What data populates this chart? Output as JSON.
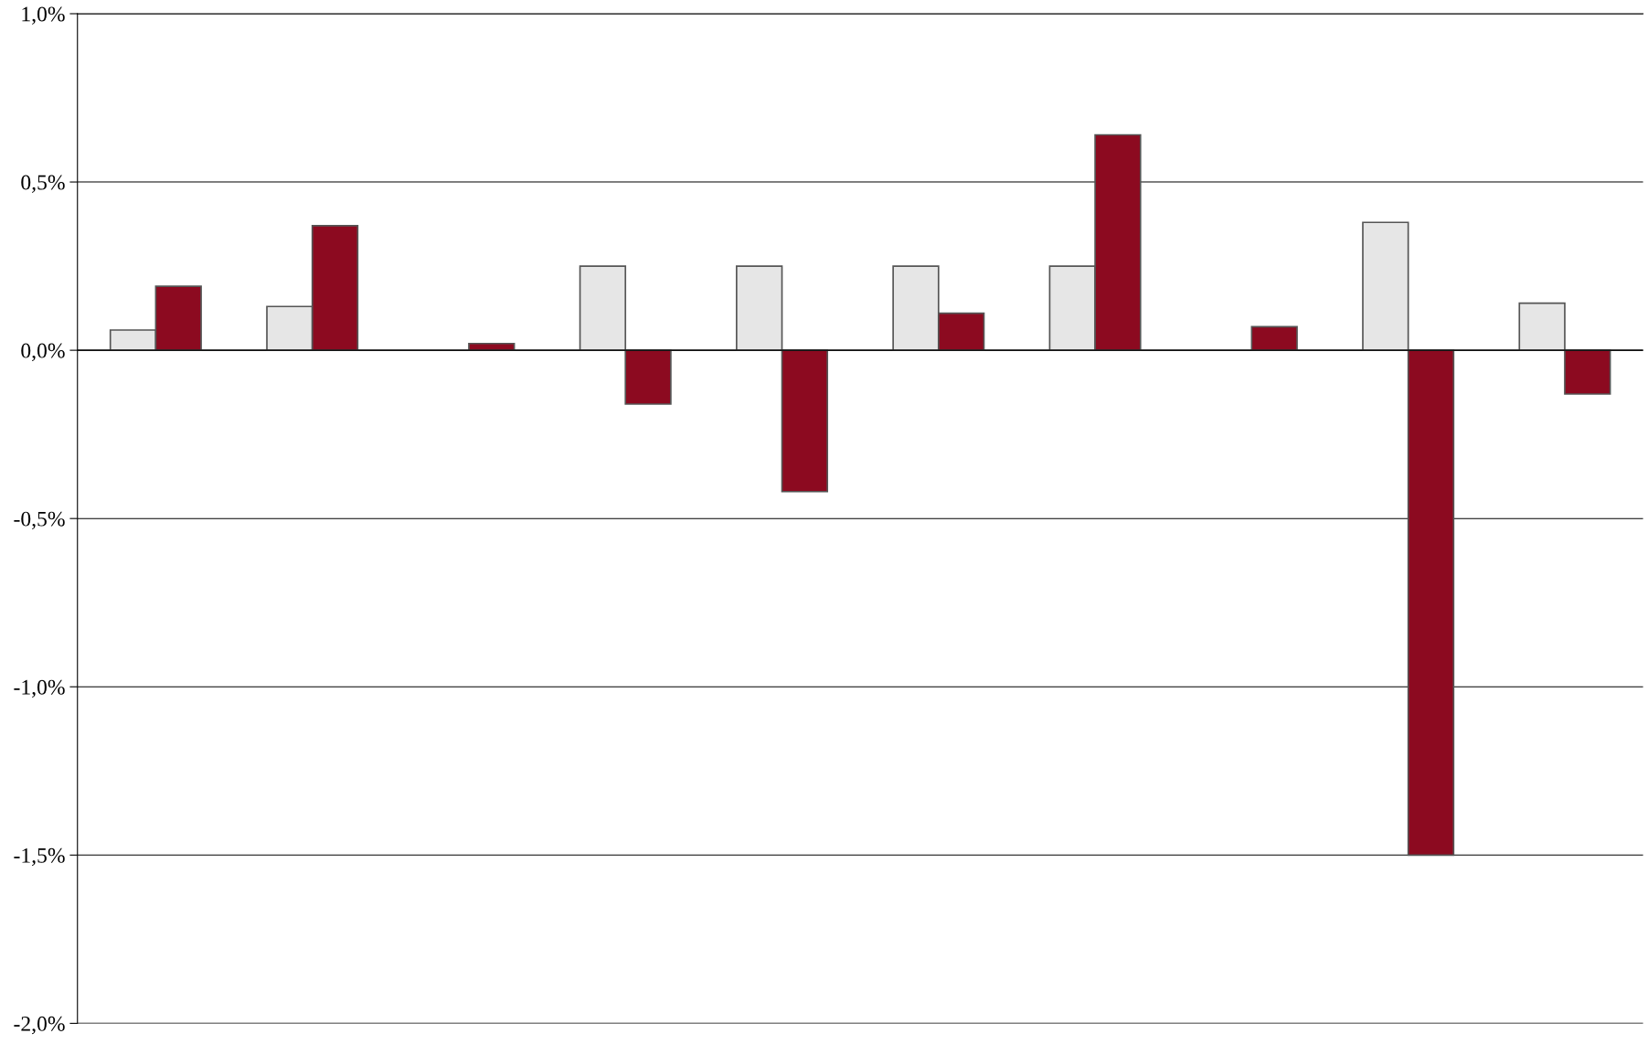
{
  "chart_data": {
    "type": "bar",
    "categories": [
      null,
      null,
      null,
      null,
      null,
      null,
      null,
      null,
      null,
      null
    ],
    "series": [
      {
        "color": "#e6e6e6",
        "values": [
          0.06,
          0.13,
          null,
          0.25,
          0.25,
          0.25,
          0.25,
          null,
          0.38,
          0.14
        ]
      },
      {
        "color": "#8c0a20",
        "values": [
          0.19,
          0.37,
          0.02,
          -0.16,
          -0.42,
          0.11,
          0.64,
          0.07,
          -1.5,
          -0.13
        ]
      }
    ],
    "ylim": [
      -2.0,
      1.0
    ],
    "yticks": [
      {
        "value": -2.0,
        "label": "-2,0%"
      },
      {
        "value": -1.5,
        "label": "-1,5%"
      },
      {
        "value": -1.0,
        "label": "-1,0%"
      },
      {
        "value": -0.5,
        "label": "-0,5%"
      },
      {
        "value": 0.0,
        "label": "0,0%"
      },
      {
        "value": 0.5,
        "label": "0,5%"
      },
      {
        "value": 1.0,
        "label": "1,0%"
      }
    ],
    "grid": "y",
    "legend": false
  }
}
